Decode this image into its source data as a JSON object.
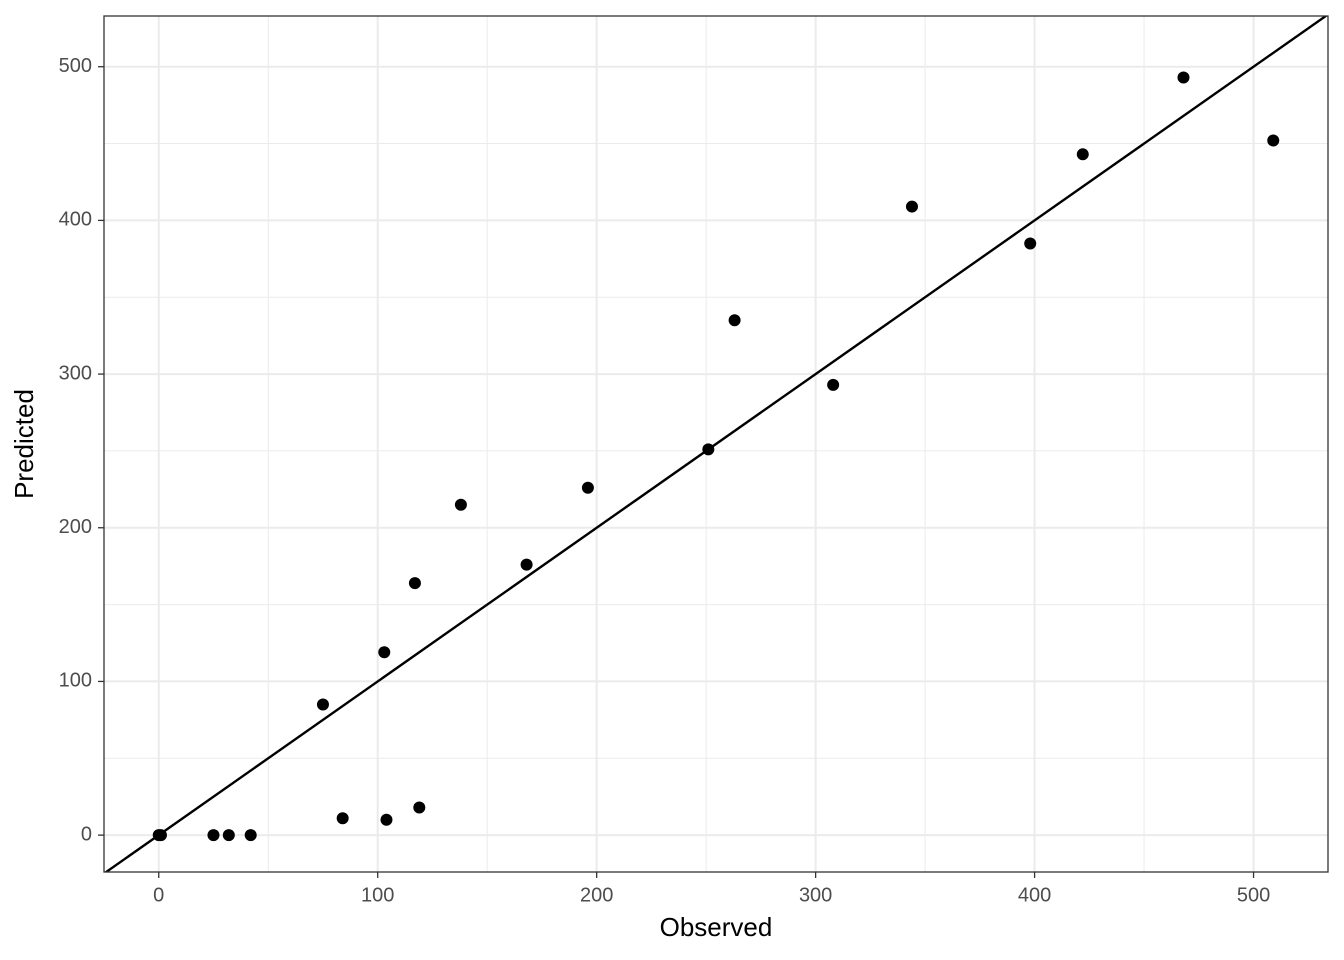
{
  "chart_data": {
    "type": "scatter",
    "x_label": "Observed",
    "y_label": "Predicted",
    "x": [
      0,
      1,
      25,
      32,
      42,
      75,
      84,
      103,
      104,
      117,
      119,
      138,
      168,
      196,
      251,
      263,
      308,
      344,
      398,
      422,
      468,
      509
    ],
    "y": [
      0,
      0,
      0,
      0,
      0,
      85,
      11,
      119,
      10,
      164,
      18,
      215,
      176,
      226,
      251,
      335,
      293,
      409,
      385,
      443,
      493,
      452
    ],
    "color": "#000000",
    "abline": {
      "intercept": 0,
      "slope": 1
    },
    "xlim": [
      -25,
      534
    ],
    "ylim": [
      -24,
      533
    ],
    "xticks": [
      0,
      100,
      200,
      300,
      400,
      500
    ],
    "yticks": [
      0,
      100,
      200,
      300,
      400,
      500
    ],
    "grid": true
  }
}
